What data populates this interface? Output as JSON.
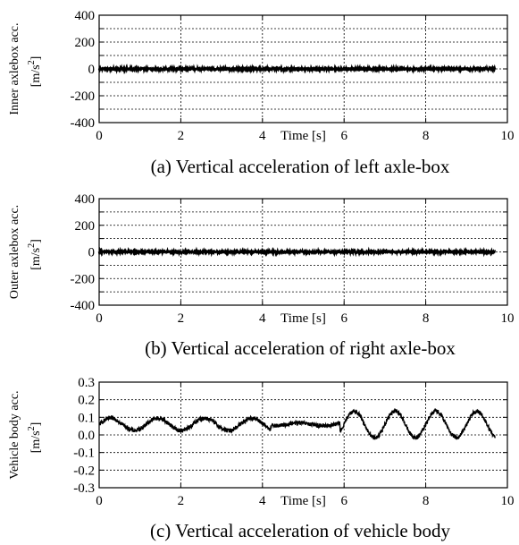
{
  "chart_data": [
    {
      "type": "line",
      "caption": "(a) Vertical acceleration of left axle-box",
      "ylabel_line1": "Inner axlebox acc.",
      "ylabel_unit": "[m/s",
      "ylabel_unit_sup": "2",
      "ylabel_unit_close": "]",
      "xlabel": "Time [s]",
      "xlim": [
        0,
        10
      ],
      "ylim": [
        -400,
        400
      ],
      "xticks": [
        0,
        2,
        4,
        6,
        8,
        10
      ],
      "xtick_labels": [
        "0",
        "2",
        "4",
        "6",
        "8",
        "10"
      ],
      "yticks": [
        -400,
        -300,
        -200,
        -100,
        0,
        100,
        200,
        300,
        400
      ],
      "ytick_labels": [
        "-400",
        "",
        "-200",
        "",
        "0",
        "",
        "200",
        "",
        "400"
      ],
      "grid": true,
      "signal": {
        "x_end": 9.7,
        "mean": 0,
        "noise_amplitude": 6,
        "waves": []
      }
    },
    {
      "type": "line",
      "caption": "(b) Vertical acceleration of right axle-box",
      "ylabel_line1": "Outer axlebox acc.",
      "ylabel_unit": "[m/s",
      "ylabel_unit_sup": "2",
      "ylabel_unit_close": "]",
      "xlabel": "Time [s]",
      "xlim": [
        0,
        10
      ],
      "ylim": [
        -400,
        400
      ],
      "xticks": [
        0,
        2,
        4,
        6,
        8,
        10
      ],
      "xtick_labels": [
        "0",
        "2",
        "4",
        "6",
        "8",
        "10"
      ],
      "yticks": [
        -400,
        -300,
        -200,
        -100,
        0,
        100,
        200,
        300,
        400
      ],
      "ytick_labels": [
        "-400",
        "",
        "-200",
        "",
        "0",
        "",
        "200",
        "",
        "400"
      ],
      "grid": true,
      "signal": {
        "x_end": 9.7,
        "mean": 0,
        "noise_amplitude": 6,
        "waves": []
      }
    },
    {
      "type": "line",
      "caption": "(c) Vertical acceleration of vehicle body",
      "ylabel_line1": "Vehicle body acc.",
      "ylabel_unit": "[m/s",
      "ylabel_unit_sup": "2",
      "ylabel_unit_close": "]",
      "xlabel": "Time [s]",
      "xlim": [
        0,
        10
      ],
      "ylim": [
        -0.3,
        0.3
      ],
      "xticks": [
        0,
        2,
        4,
        6,
        8,
        10
      ],
      "xtick_labels": [
        "0",
        "2",
        "4",
        "6",
        "8",
        "10"
      ],
      "yticks": [
        -0.3,
        -0.2,
        -0.1,
        0.0,
        0.1,
        0.2,
        0.3
      ],
      "ytick_labels": [
        "-0.3",
        "-0.2",
        "-0.1",
        "0.0",
        "0.1",
        "0.2",
        "0.3"
      ],
      "grid": true,
      "signal": {
        "x_end": 9.7,
        "mean": 0.06,
        "noise_amplitude": 0.012,
        "waves": [
          {
            "t_start": 0.0,
            "t_end": 4.2,
            "amplitude": 0.035,
            "period_s": 1.15
          },
          {
            "t_start": 4.2,
            "t_end": 5.9,
            "amplitude": 0.008,
            "period_s": 1.15
          },
          {
            "t_start": 5.9,
            "t_end": 9.7,
            "amplitude": 0.075,
            "period_s": 1.0
          }
        ]
      }
    }
  ]
}
